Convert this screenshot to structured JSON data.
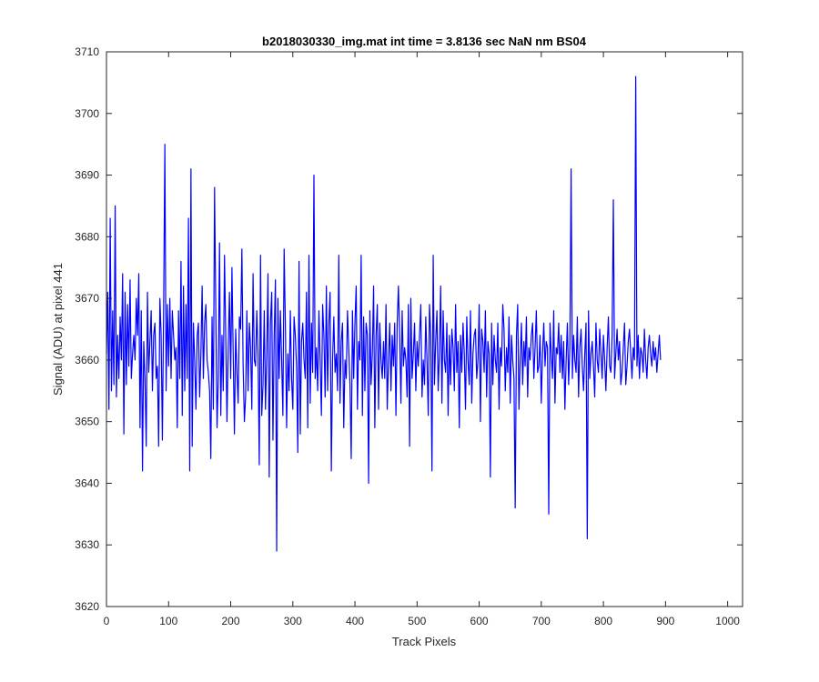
{
  "chart_data": {
    "type": "line",
    "title": "b2018030330_img.mat int time = 3.8136 sec  NaN nm BS04",
    "xlabel": "Track Pixels",
    "ylabel": "Signal (ADU) at pixel 441",
    "xlim": [
      0,
      1024
    ],
    "ylim": [
      3620,
      3710
    ],
    "xticks": [
      0,
      100,
      200,
      300,
      400,
      500,
      600,
      700,
      800,
      900,
      1000
    ],
    "yticks": [
      3620,
      3630,
      3640,
      3650,
      3660,
      3670,
      3680,
      3690,
      3700,
      3710
    ],
    "grid": false,
    "line_color": "#0000ff",
    "series": [
      {
        "x_start": 0,
        "x_step": 2,
        "values": [
          3661,
          3671,
          3652,
          3683,
          3655,
          3668,
          3656,
          3685,
          3654,
          3664,
          3657,
          3667,
          3660,
          3674,
          3648,
          3671,
          3656,
          3669,
          3659,
          3673,
          3657,
          3661,
          3664,
          3660,
          3670,
          3664,
          3674,
          3649,
          3668,
          3642,
          3663,
          3657,
          3646,
          3671,
          3658,
          3663,
          3668,
          3655,
          3664,
          3666,
          3657,
          3659,
          3646,
          3670,
          3664,
          3647,
          3668,
          3695,
          3655,
          3669,
          3659,
          3670,
          3657,
          3668,
          3664,
          3660,
          3662,
          3649,
          3668,
          3657,
          3676,
          3651,
          3672,
          3655,
          3669,
          3657,
          3683,
          3642,
          3691,
          3646,
          3666,
          3660,
          3652,
          3664,
          3666,
          3654,
          3661,
          3672,
          3657,
          3666,
          3669,
          3660,
          3658,
          3655,
          3644,
          3667,
          3652,
          3688,
          3668,
          3649,
          3657,
          3679,
          3651,
          3664,
          3655,
          3677,
          3664,
          3650,
          3662,
          3671,
          3657,
          3675,
          3661,
          3648,
          3665,
          3658,
          3653,
          3667,
          3665,
          3678,
          3659,
          3650,
          3654,
          3668,
          3655,
          3666,
          3662,
          3652,
          3674,
          3660,
          3659,
          3668,
          3661,
          3643,
          3677,
          3651,
          3656,
          3668,
          3652,
          3661,
          3674,
          3641,
          3666,
          3671,
          3647,
          3664,
          3673,
          3629,
          3670,
          3657,
          3668,
          3660,
          3651,
          3678,
          3666,
          3649,
          3661,
          3655,
          3668,
          3657,
          3652,
          3667,
          3664,
          3659,
          3645,
          3676,
          3648,
          3663,
          3666,
          3660,
          3657,
          3671,
          3649,
          3677,
          3653,
          3666,
          3658,
          3690,
          3657,
          3662,
          3655,
          3668,
          3660,
          3651,
          3669,
          3664,
          3654,
          3672,
          3655,
          3666,
          3671,
          3642,
          3660,
          3667,
          3658,
          3661,
          3655,
          3677,
          3653,
          3663,
          3666,
          3649,
          3660,
          3657,
          3668,
          3662,
          3656,
          3644,
          3668,
          3657,
          3666,
          3672,
          3652,
          3663,
          3660,
          3677,
          3651,
          3667,
          3655,
          3666,
          3664,
          3640,
          3668,
          3656,
          3661,
          3672,
          3649,
          3664,
          3669,
          3652,
          3666,
          3660,
          3657,
          3663,
          3657,
          3669,
          3652,
          3660,
          3666,
          3655,
          3664,
          3659,
          3666,
          3651,
          3666,
          3672,
          3664,
          3653,
          3668,
          3659,
          3662,
          3660,
          3654,
          3669,
          3646,
          3670,
          3657,
          3661,
          3666,
          3655,
          3663,
          3659,
          3664,
          3669,
          3654,
          3660,
          3656,
          3667,
          3660,
          3651,
          3669,
          3664,
          3642,
          3677,
          3656,
          3663,
          3668,
          3655,
          3661,
          3672,
          3653,
          3668,
          3660,
          3658,
          3666,
          3651,
          3664,
          3656,
          3665,
          3662,
          3655,
          3669,
          3658,
          3663,
          3649,
          3664,
          3658,
          3666,
          3661,
          3652,
          3667,
          3660,
          3656,
          3668,
          3653,
          3661,
          3664,
          3665,
          3657,
          3660,
          3669,
          3650,
          3665,
          3663,
          3658,
          3668,
          3654,
          3663,
          3661,
          3641,
          3666,
          3656,
          3664,
          3660,
          3658,
          3666,
          3652,
          3662,
          3659,
          3669,
          3665,
          3655,
          3662,
          3658,
          3667,
          3653,
          3664,
          3660,
          3657,
          3636,
          3664,
          3669,
          3652,
          3660,
          3666,
          3656,
          3663,
          3659,
          3667,
          3654,
          3662,
          3660,
          3664,
          3666,
          3657,
          3662,
          3668,
          3658,
          3659,
          3664,
          3653,
          3661,
          3666,
          3659,
          3663,
          3662,
          3635,
          3666,
          3661,
          3657,
          3668,
          3653,
          3662,
          3661,
          3666,
          3658,
          3664,
          3657,
          3663,
          3652,
          3660,
          3666,
          3656,
          3662,
          3691,
          3657,
          3664,
          3660,
          3658,
          3667,
          3654,
          3662,
          3665,
          3659,
          3655,
          3661,
          3666,
          3631,
          3668,
          3657,
          3661,
          3663,
          3659,
          3654,
          3666,
          3660,
          3658,
          3665,
          3661,
          3657,
          3664,
          3660,
          3655,
          3662,
          3667,
          3659,
          3658,
          3664,
          3686,
          3657,
          3661,
          3665,
          3660,
          3663,
          3656,
          3658,
          3662,
          3666,
          3656,
          3659,
          3663,
          3665,
          3661,
          3657,
          3662,
          3660,
          3706,
          3659,
          3664,
          3657,
          3662,
          3661,
          3658,
          3665,
          3660,
          3657,
          3662,
          3664,
          3661,
          3659,
          3663,
          3660,
          3662,
          3658,
          3661,
          3664,
          3660
        ]
      }
    ]
  }
}
